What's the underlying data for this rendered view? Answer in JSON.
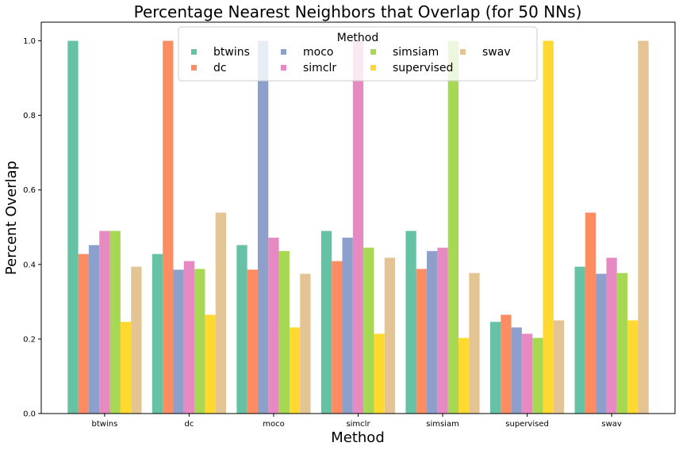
{
  "chart_data": {
    "type": "bar",
    "title": "Percentage Nearest Neighbors that Overlap (for 50 NNs)",
    "xlabel": "Method",
    "ylabel": "Percent Overlap",
    "ylim": [
      0,
      1.05
    ],
    "yticks": [
      "0.0",
      "0.2",
      "0.4",
      "0.6",
      "0.8",
      "1.0"
    ],
    "categories": [
      "btwins",
      "dc",
      "moco",
      "simclr",
      "simsiam",
      "supervised",
      "swav"
    ],
    "legend": {
      "title": "Method",
      "placement": "top-center",
      "columns": 4
    },
    "grid": false,
    "series": [
      {
        "name": "btwins",
        "color": "#66c2a5",
        "values": [
          1.0,
          0.428,
          0.452,
          0.49,
          0.49,
          0.246,
          0.394
        ]
      },
      {
        "name": "dc",
        "color": "#fc8d62",
        "values": [
          0.428,
          1.0,
          0.386,
          0.409,
          0.388,
          0.265,
          0.539
        ]
      },
      {
        "name": "moco",
        "color": "#8da0cb",
        "values": [
          0.452,
          0.386,
          1.0,
          0.472,
          0.436,
          0.231,
          0.375
        ]
      },
      {
        "name": "simclr",
        "color": "#e78ac3",
        "values": [
          0.49,
          0.409,
          0.472,
          1.0,
          0.445,
          0.214,
          0.418
        ]
      },
      {
        "name": "simsiam",
        "color": "#a6d854",
        "values": [
          0.49,
          0.388,
          0.436,
          0.445,
          1.0,
          0.203,
          0.377
        ]
      },
      {
        "name": "supervised",
        "color": "#ffd92f",
        "values": [
          0.246,
          0.265,
          0.231,
          0.214,
          0.203,
          1.0,
          0.25
        ]
      },
      {
        "name": "swav",
        "color": "#e5c494",
        "values": [
          0.394,
          0.539,
          0.375,
          0.418,
          0.377,
          0.25,
          1.0
        ]
      }
    ]
  }
}
